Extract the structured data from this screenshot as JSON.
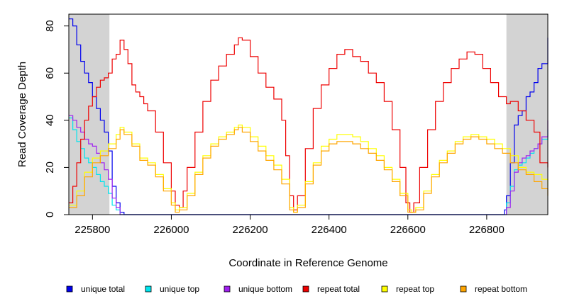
{
  "chart_data": {
    "type": "line",
    "xlabel": "Coordinate in Reference Genome",
    "ylabel": "Read Coverage Depth",
    "xlim": [
      225740,
      226955
    ],
    "ylim": [
      0,
      85
    ],
    "x_ticks": [
      225800,
      226000,
      226200,
      226400,
      226600,
      226800
    ],
    "x_tick_labels": [
      "225800",
      "226000",
      "226200",
      "226400",
      "226600",
      "226800"
    ],
    "y_ticks": [
      0,
      20,
      40,
      60,
      80
    ],
    "y_tick_labels": [
      "0",
      "20",
      "40",
      "60",
      "80"
    ],
    "shaded_regions": [
      [
        225740,
        225843
      ],
      [
        226850,
        226955
      ]
    ],
    "shade_color": "#d3d3d3",
    "legend_position": "bottom",
    "series": [
      {
        "name": "unique total",
        "color": "#0000ee",
        "x": [
          225740,
          225750,
          225760,
          225770,
          225780,
          225790,
          225800,
          225810,
          225820,
          225830,
          225840,
          225850,
          225860,
          225870,
          225880,
          226840,
          226845,
          226850,
          226860,
          226870,
          226880,
          226890,
          226900,
          226910,
          226920,
          226930,
          226940,
          226955
        ],
        "y": [
          83,
          80,
          72,
          65,
          60,
          56,
          50,
          45,
          40,
          35,
          27,
          12,
          5,
          1,
          0,
          0,
          2,
          8,
          22,
          38,
          42,
          44,
          50,
          52,
          56,
          62,
          64,
          75
        ]
      },
      {
        "name": "unique top",
        "color": "#00e5ee",
        "x": [
          225740,
          225750,
          225760,
          225770,
          225780,
          225790,
          225800,
          225810,
          225820,
          225830,
          225840,
          225850,
          225860,
          225870,
          226840,
          226850,
          226860,
          226870,
          226880,
          226890,
          226900,
          226910,
          226920,
          226930,
          226940,
          226955
        ],
        "y": [
          41,
          36,
          31,
          28,
          24,
          22,
          20,
          17,
          14,
          12,
          9,
          4,
          2,
          0,
          0,
          5,
          12,
          19,
          21,
          22,
          24,
          26,
          28,
          30,
          32,
          36
        ]
      },
      {
        "name": "unique bottom",
        "color": "#a020f0",
        "x": [
          225740,
          225750,
          225760,
          225770,
          225780,
          225790,
          225800,
          225810,
          225820,
          225830,
          225840,
          225850,
          225860,
          225870,
          226840,
          226850,
          226860,
          226870,
          226880,
          226890,
          226900,
          226910,
          226920,
          226930,
          226940,
          226955
        ],
        "y": [
          42,
          40,
          37,
          35,
          32,
          30,
          29,
          26,
          22,
          19,
          15,
          7,
          3,
          0,
          0,
          3,
          10,
          18,
          22,
          24,
          25,
          27,
          28,
          30,
          33,
          40
        ]
      },
      {
        "name": "repeat total",
        "color": "#ee0000",
        "x": [
          225740,
          225750,
          225760,
          225770,
          225780,
          225790,
          225800,
          225810,
          225820,
          225830,
          225840,
          225850,
          225860,
          225870,
          225880,
          225890,
          225900,
          225910,
          225920,
          225930,
          225940,
          225960,
          225980,
          226000,
          226010,
          226020,
          226030,
          226040,
          226060,
          226080,
          226100,
          226120,
          226140,
          226160,
          226170,
          226180,
          226200,
          226220,
          226240,
          226260,
          226280,
          226290,
          226300,
          226310,
          226320,
          226340,
          226360,
          226380,
          226400,
          226420,
          226440,
          226460,
          226480,
          226500,
          226520,
          226540,
          226560,
          226580,
          226595,
          226605,
          226615,
          226630,
          226650,
          226670,
          226690,
          226710,
          226730,
          226750,
          226770,
          226790,
          226810,
          226830,
          226850,
          226860,
          226880,
          226900,
          226920,
          226935,
          226955
        ],
        "y": [
          5,
          12,
          22,
          32,
          40,
          46,
          50,
          54,
          57,
          58,
          60,
          66,
          68,
          74,
          70,
          64,
          55,
          52,
          50,
          47,
          44,
          35,
          22,
          10,
          4,
          3,
          10,
          20,
          35,
          48,
          57,
          63,
          68,
          72,
          75,
          74,
          67,
          60,
          54,
          49,
          40,
          25,
          8,
          2,
          8,
          28,
          45,
          55,
          62,
          68,
          70,
          67,
          65,
          60,
          56,
          48,
          36,
          20,
          5,
          1,
          5,
          20,
          36,
          48,
          56,
          62,
          66,
          69,
          68,
          62,
          56,
          50,
          47,
          48,
          44,
          40,
          35,
          22,
          20
        ]
      },
      {
        "name": "repeat top",
        "color": "#ffff00",
        "x": [
          225740,
          225760,
          225780,
          225800,
          225820,
          225840,
          225860,
          225870,
          225880,
          225900,
          225920,
          225940,
          225960,
          225980,
          226000,
          226010,
          226020,
          226040,
          226060,
          226080,
          226100,
          226120,
          226140,
          226160,
          226170,
          226180,
          226200,
          226220,
          226240,
          226260,
          226280,
          226300,
          226310,
          226320,
          226340,
          226360,
          226380,
          226400,
          226420,
          226440,
          226460,
          226480,
          226500,
          226520,
          226540,
          226560,
          226580,
          226600,
          226610,
          226620,
          226640,
          226660,
          226680,
          226700,
          226720,
          226740,
          226760,
          226780,
          226800,
          226820,
          226840,
          226860,
          226880,
          226900,
          226920,
          226940,
          226955
        ],
        "y": [
          4,
          10,
          18,
          24,
          27,
          30,
          34,
          37,
          35,
          30,
          24,
          22,
          17,
          11,
          5,
          2,
          3,
          9,
          18,
          25,
          30,
          33,
          35,
          37,
          38,
          37,
          33,
          29,
          25,
          21,
          15,
          3,
          1,
          4,
          14,
          22,
          29,
          32,
          34,
          34,
          33,
          31,
          28,
          25,
          20,
          15,
          9,
          2,
          1,
          3,
          10,
          17,
          23,
          27,
          31,
          33,
          34,
          33,
          32,
          30,
          28,
          25,
          20,
          18,
          17,
          15,
          12
        ]
      },
      {
        "name": "repeat bottom",
        "color": "#ffa500",
        "x": [
          225740,
          225760,
          225780,
          225800,
          225820,
          225840,
          225860,
          225870,
          225880,
          225900,
          225920,
          225940,
          225960,
          225980,
          226000,
          226010,
          226020,
          226040,
          226060,
          226080,
          226100,
          226120,
          226140,
          226160,
          226170,
          226180,
          226200,
          226220,
          226240,
          226260,
          226280,
          226300,
          226310,
          226320,
          226340,
          226360,
          226380,
          226400,
          226420,
          226440,
          226460,
          226480,
          226500,
          226520,
          226540,
          226560,
          226580,
          226600,
          226610,
          226620,
          226640,
          226660,
          226680,
          226700,
          226720,
          226740,
          226760,
          226780,
          226800,
          226820,
          226840,
          226860,
          226880,
          226900,
          226920,
          226940,
          226955
        ],
        "y": [
          3,
          8,
          16,
          22,
          25,
          28,
          32,
          36,
          34,
          29,
          23,
          21,
          16,
          10,
          4,
          1,
          2,
          8,
          17,
          24,
          29,
          32,
          34,
          36,
          37,
          35,
          31,
          27,
          23,
          19,
          13,
          2,
          1,
          3,
          13,
          21,
          27,
          30,
          31,
          31,
          30,
          28,
          26,
          23,
          19,
          14,
          8,
          1,
          1,
          2,
          9,
          16,
          22,
          26,
          30,
          32,
          33,
          32,
          30,
          28,
          26,
          22,
          19,
          17,
          14,
          11,
          8
        ]
      }
    ]
  }
}
